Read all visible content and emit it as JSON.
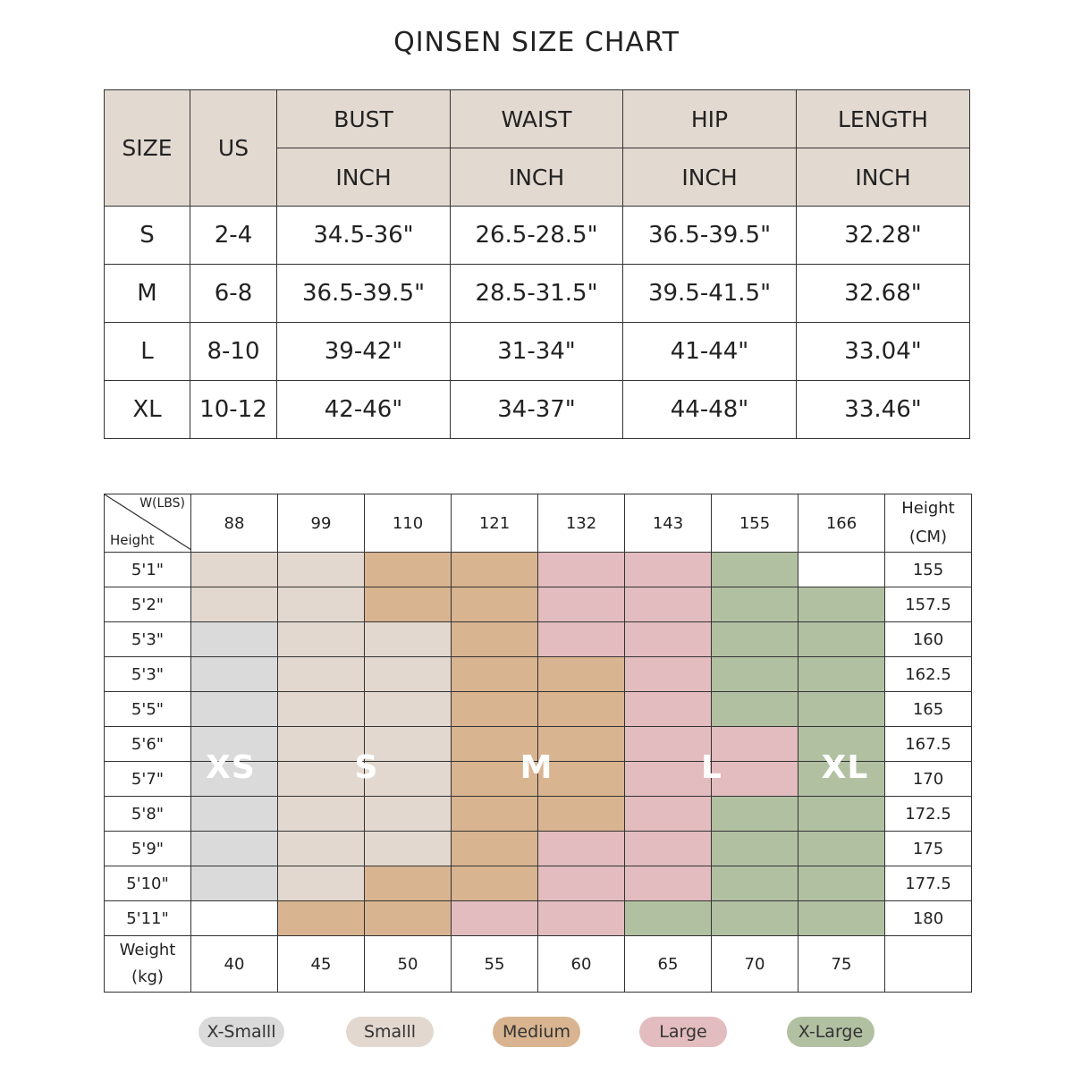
{
  "title": "QINSEN SIZE CHART",
  "size_table": {
    "headers": {
      "size": "SIZE",
      "us": "US",
      "measures": [
        "BUST",
        "WAIST",
        "HIP",
        "LENGTH"
      ],
      "unit": "INCH"
    },
    "rows": [
      [
        "S",
        "2-4",
        "34.5-36\"",
        "26.5-28.5\"",
        "36.5-39.5\"",
        "32.28\""
      ],
      [
        "M",
        "6-8",
        "36.5-39.5\"",
        "28.5-31.5\"",
        "39.5-41.5\"",
        "32.68\""
      ],
      [
        "L",
        "8-10",
        "39-42\"",
        "31-34\"",
        "41-44\"",
        "33.04\""
      ],
      [
        "XL",
        "10-12",
        "42-46\"",
        "34-37\"",
        "44-48\"",
        "33.46\""
      ]
    ]
  },
  "fit_table": {
    "corner_weight_label": "W(LBS)",
    "corner_height_label": "Height",
    "height_cm_header": [
      "Height",
      "(CM)"
    ],
    "weights_lbs": [
      "88",
      "99",
      "110",
      "121",
      "132",
      "143",
      "155",
      "166"
    ],
    "weight_kg_label": [
      "Weight",
      "(kg)"
    ],
    "weights_kg": [
      "40",
      "45",
      "50",
      "55",
      "60",
      "65",
      "70",
      "75"
    ],
    "rows": [
      {
        "height_ft": "5'1\"",
        "height_cm": "155",
        "cells": [
          "s",
          "s",
          "m",
          "m",
          "l",
          "l",
          "xl",
          "empty"
        ]
      },
      {
        "height_ft": "5'2\"",
        "height_cm": "157.5",
        "cells": [
          "s",
          "s",
          "m",
          "m",
          "l",
          "l",
          "xl",
          "xl"
        ]
      },
      {
        "height_ft": "5'3\"",
        "height_cm": "160",
        "cells": [
          "xs",
          "s",
          "s",
          "m",
          "l",
          "l",
          "xl",
          "xl"
        ]
      },
      {
        "height_ft": "5'3\"",
        "height_cm": "162.5",
        "cells": [
          "xs",
          "s",
          "s",
          "m",
          "m",
          "l",
          "xl",
          "xl"
        ]
      },
      {
        "height_ft": "5'5\"",
        "height_cm": "165",
        "cells": [
          "xs",
          "s",
          "s",
          "m",
          "m",
          "l",
          "xl",
          "xl"
        ]
      },
      {
        "height_ft": "5'6\"",
        "height_cm": "167.5",
        "cells": [
          "xs",
          "s",
          "s",
          "m",
          "m",
          "l",
          "l",
          "xl"
        ]
      },
      {
        "height_ft": "5'7\"",
        "height_cm": "170",
        "cells": [
          "xs",
          "s",
          "s",
          "m",
          "m",
          "l",
          "l",
          "xl"
        ]
      },
      {
        "height_ft": "5'8\"",
        "height_cm": "172.5",
        "cells": [
          "xs",
          "s",
          "s",
          "m",
          "m",
          "l",
          "xl",
          "xl"
        ]
      },
      {
        "height_ft": "5'9\"",
        "height_cm": "175",
        "cells": [
          "xs",
          "s",
          "s",
          "m",
          "l",
          "l",
          "xl",
          "xl"
        ]
      },
      {
        "height_ft": "5'10\"",
        "height_cm": "177.5",
        "cells": [
          "xs",
          "s",
          "m",
          "m",
          "l",
          "l",
          "xl",
          "xl"
        ]
      },
      {
        "height_ft": "5'11\"",
        "height_cm": "180",
        "cells": [
          "empty",
          "m",
          "m",
          "l",
          "l",
          "xl",
          "xl",
          "xl"
        ]
      }
    ],
    "zone_labels": [
      "XS",
      "S",
      "M",
      "L",
      "XL"
    ]
  },
  "legend": [
    {
      "label": "X-Smalll",
      "color": "#dadada"
    },
    {
      "label": "Smalll",
      "color": "#e3d8cf"
    },
    {
      "label": "Medium",
      "color": "#d8b490"
    },
    {
      "label": "Large",
      "color": "#e2bcbe"
    },
    {
      "label": "X-Large",
      "color": "#b2c0a2"
    }
  ]
}
